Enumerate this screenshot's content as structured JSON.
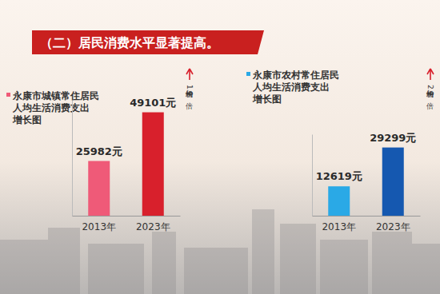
{
  "title": "（二）居民消费水平显著提高。",
  "chart_data": [
    {
      "type": "bar",
      "title": "永康市城镇常住居民人均生活消费支出增长图",
      "categories": [
        "2013年",
        "2023年"
      ],
      "values": [
        25982,
        49101
      ],
      "value_labels": [
        "25982元",
        "49101元"
      ],
      "colors": [
        "#ef5a78",
        "#d8202c"
      ],
      "ylim": [
        0,
        55000
      ],
      "data_labels": true,
      "tick_labels": "x",
      "annotations": [
        "增长约1.9倍"
      ]
    },
    {
      "type": "bar",
      "title": "永康市农村常住居民人均生活消费支出增长图",
      "categories": [
        "2013年",
        "2023年"
      ],
      "values": [
        12619,
        29299
      ],
      "value_labels": [
        "12619元",
        "29299元"
      ],
      "colors": [
        "#2aa9e6",
        "#1558b0"
      ],
      "ylim": [
        0,
        35000
      ],
      "data_labels": true,
      "tick_labels": "x",
      "annotations": [
        "增长约2.3倍"
      ]
    }
  ]
}
